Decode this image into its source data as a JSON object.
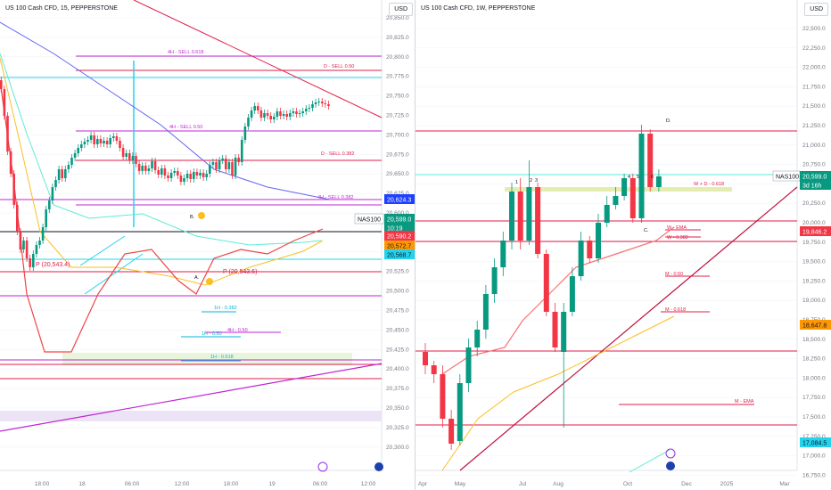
{
  "left": {
    "symbol": "US 100 Cash CFD, 15, PEPPERSTONE",
    "currency": "USD",
    "price_ticks": [
      "20,850.0",
      "20,825.0",
      "20,800.0",
      "20,775.0",
      "20,750.0",
      "20,725.0",
      "20,700.0",
      "20,675.0",
      "20,650.0",
      "20,625.0",
      "20,600.0",
      "20,575.0",
      "20,550.0",
      "20,525.0",
      "20,500.0",
      "20,475.0",
      "20,450.0",
      "20,425.0",
      "20,400.0",
      "20,375.0",
      "20,350.0",
      "20,325.0",
      "20,300.0"
    ],
    "time_ticks": [
      "18:00",
      "18",
      "06:00",
      "12:00",
      "18:00",
      "19",
      "06:00",
      "12:00"
    ],
    "level_labels": [
      {
        "text": "4H - SELL 0.618",
        "color": "#c026d3"
      },
      {
        "text": "D - SELL 0.50",
        "color": "#e11d48"
      },
      {
        "text": "4H - SELL 0.50",
        "color": "#c026d3"
      },
      {
        "text": "D - SELL 0.382",
        "color": "#e11d48"
      },
      {
        "text": "4H - SELL 0.382",
        "color": "#c026d3"
      },
      {
        "text": "1H - 0.382",
        "color": "#06b6d4"
      },
      {
        "text": "4H - 0.50",
        "color": "#c026d3"
      },
      {
        "text": "1H - 0.50",
        "color": "#06b6d4"
      },
      {
        "text": "1H - 0.618",
        "color": "#06b6d4"
      }
    ],
    "chart_labels": [
      "P (20,543.4)",
      "P (20,543.6)",
      "B.",
      "A."
    ],
    "price_tags": [
      {
        "text": "20,624.3",
        "bg": "#1e40ff",
        "fg": "#ffffff"
      },
      {
        "text": "NAS100",
        "bg": "#ffffff",
        "fg": "#131722"
      },
      {
        "text": "20,599.0",
        "bg": "#089981",
        "fg": "#ffffff"
      },
      {
        "text": "10:19",
        "bg": "#089981",
        "fg": "#ffffff"
      },
      {
        "text": "20,590.2",
        "bg": "#f23645",
        "fg": "#ffffff"
      },
      {
        "text": "20,572.7",
        "bg": "#ff9800",
        "fg": "#131722"
      },
      {
        "text": "20,568.7",
        "bg": "#22d3ee",
        "fg": "#131722"
      }
    ]
  },
  "right": {
    "symbol": "US 100 Cash CFD, 1W, PEPPERSTONE",
    "currency": "USD",
    "price_ticks": [
      "22,500.0",
      "22,250.0",
      "22,000.0",
      "21,750.0",
      "21,500.0",
      "21,250.0",
      "21,000.0",
      "20,750.0",
      "20,500.0",
      "20,250.0",
      "20,000.0",
      "19,750.0",
      "19,500.0",
      "19,250.0",
      "19,000.0",
      "18,750.0",
      "18,500.0",
      "18,250.0",
      "18,000.0",
      "17,750.0",
      "17,500.0",
      "17,250.0",
      "17,000.0",
      "16,750.0"
    ],
    "time_ticks": [
      "Apr",
      "May",
      "Jul",
      "Aug",
      "Oct",
      "Dec",
      "2025",
      "Mar"
    ],
    "level_labels": [
      {
        "text": "W + D - 0.618",
        "color": "#e11d48"
      },
      {
        "text": "W - EMA",
        "color": "#e11d48"
      },
      {
        "text": "W - 0.382",
        "color": "#e11d48"
      },
      {
        "text": "M - 0.50",
        "color": "#e11d48"
      },
      {
        "text": "M - 0.618",
        "color": "#e11d48"
      },
      {
        "text": "M - EMA",
        "color": "#e11d48"
      }
    ],
    "wave_labels": [
      "1",
      "2",
      "3",
      "4",
      "5",
      "6",
      "C.",
      "D."
    ],
    "price_tags": [
      {
        "text": "NAS100",
        "bg": "#ffffff",
        "fg": "#131722"
      },
      {
        "text": "20,599.0",
        "bg": "#089981",
        "fg": "#ffffff"
      },
      {
        "text": "3d 16h",
        "bg": "#089981",
        "fg": "#ffffff"
      },
      {
        "text": "19,846.2",
        "bg": "#f23645",
        "fg": "#ffffff"
      },
      {
        "text": "18,647.8",
        "bg": "#ff9800",
        "fg": "#131722"
      },
      {
        "text": "17,084.5",
        "bg": "#22d3ee",
        "fg": "#131722"
      }
    ]
  },
  "colors": {
    "up": "#089981",
    "down": "#f23645",
    "grid": "#f0f3fa",
    "axis_text": "#787b86"
  }
}
